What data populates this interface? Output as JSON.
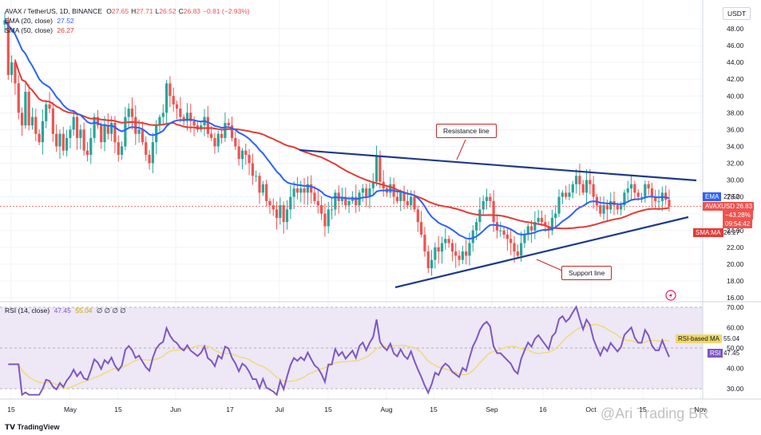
{
  "header": {
    "symbol_line": "AVAX / TetherUS, 1D, BINANCE",
    "ohlc": [
      {
        "k": "O",
        "v": "27.65"
      },
      {
        "k": "H",
        "v": "27.71"
      },
      {
        "k": "L",
        "v": "26.52"
      },
      {
        "k": "C",
        "v": "26.83"
      },
      {
        "k": "",
        "v": "−0.81 (−2.93%)"
      }
    ],
    "ema_label": "EMA (20, close)",
    "ema_value": "27.52",
    "sma_label": "SMA (50, close)",
    "sma_value": "26.27",
    "rsi_label": "RSI (14, close)",
    "rsi_value": "47.45",
    "rsi_ma_value": "55.04",
    "rsi_extra": "∅ ∅ ∅ ∅"
  },
  "currency": "USDT",
  "badges": {
    "ema": {
      "label": "EMA",
      "value": "27.52"
    },
    "price": {
      "label": "AVAXUSDT",
      "value": "26.83",
      "change": "−43.28%",
      "countdown": "09:54:42"
    },
    "sma": {
      "label": "SMA:MA",
      "value": "26.27"
    },
    "rsi_ma": {
      "label": "RSI-based MA",
      "value": "55.04"
    },
    "rsi": {
      "label": "RSI",
      "value": "47.45"
    }
  },
  "annotations": {
    "resistance": "Resistance line",
    "support": "Support line"
  },
  "footer": {
    "logo": "TradingView",
    "watermark": "@Ari Trading BR"
  },
  "colors": {
    "up": "#26a69a",
    "down": "#ef5350",
    "ema": "#2962ff",
    "sma": "#e53935",
    "trend": "#1e3a8a",
    "rsi": "#7e57c2",
    "rsi_ma": "#f0d86a",
    "rsi_band": "#ede7f6"
  },
  "chart_data": [
    {
      "type": "candlestick",
      "title": "AVAX / TetherUS, 1D, BINANCE",
      "x_ticks": [
        "15",
        "May",
        "15",
        "Jun",
        "17",
        "Jul",
        "15",
        "Aug",
        "15",
        "Sep",
        "16",
        "Oct",
        "15",
        "Nov"
      ],
      "y_ticks": [
        "48.00",
        "46.00",
        "44.00",
        "42.00",
        "40.00",
        "38.00",
        "36.00",
        "34.00",
        "32.00",
        "30.00",
        "28.00",
        "26.00",
        "24.00",
        "22.00",
        "20.00",
        "18.00",
        "16.00"
      ],
      "ylim": [
        15.0,
        50.0
      ],
      "close": [
        49.0,
        42.5,
        44.0,
        41.5,
        38.0,
        36.5,
        40.5,
        36.5,
        37.5,
        35.5,
        34.5,
        37.0,
        39.0,
        38.5,
        35.5,
        34.0,
        35.5,
        33.5,
        35.0,
        36.0,
        37.5,
        35.0,
        36.0,
        33.5,
        33.0,
        35.0,
        37.5,
        36.5,
        34.5,
        36.5,
        35.5,
        36.8,
        34.5,
        33.0,
        34.0,
        37.5,
        38.5,
        37.5,
        35.5,
        36.0,
        34.5,
        33.0,
        32.0,
        34.5,
        36.5,
        37.5,
        38.0,
        41.5,
        40.0,
        39.0,
        38.5,
        37.5,
        37.0,
        38.0,
        37.0,
        36.5,
        36.0,
        36.5,
        37.5,
        35.5,
        35.0,
        34.0,
        35.5,
        35.0,
        36.8,
        36.5,
        35.0,
        34.0,
        32.5,
        33.5,
        33.0,
        32.0,
        30.5,
        30.5,
        28.5,
        29.5,
        27.5,
        27.0,
        26.5,
        25.5,
        27.0,
        25.0,
        26.5,
        28.0,
        29.0,
        28.5,
        29.0,
        28.5,
        29.5,
        28.5,
        27.5,
        27.0,
        26.0,
        24.5,
        26.5,
        26.5,
        28.5,
        27.5,
        28.0,
        27.0,
        27.5,
        28.0,
        27.0,
        28.5,
        29.0,
        28.0,
        29.0,
        29.8,
        32.8,
        29.8,
        29.0,
        28.5,
        29.5,
        28.0,
        27.5,
        28.5,
        27.5,
        27.0,
        28.0,
        26.5,
        25.0,
        23.5,
        21.5,
        19.5,
        20.5,
        22.0,
        21.5,
        22.5,
        23.0,
        22.5,
        21.5,
        21.0,
        20.5,
        21.5,
        21.0,
        22.5,
        24.0,
        25.0,
        26.5,
        27.5,
        28.0,
        27.5,
        25.0,
        24.0,
        24.0,
        23.5,
        23.0,
        22.5,
        21.5,
        21.0,
        22.5,
        23.5,
        24.5,
        24.0,
        25.0,
        25.5,
        25.0,
        24.5,
        24.0,
        25.5,
        26.0,
        28.0,
        28.5,
        28.0,
        28.5,
        29.5,
        30.5,
        29.5,
        28.5,
        30.0,
        29.5,
        28.0,
        27.0,
        26.0,
        27.0,
        26.5,
        27.5,
        27.0,
        26.5,
        27.0,
        28.5,
        29.0,
        29.5,
        28.5,
        28.0,
        28.0,
        29.5,
        29.0,
        28.0,
        27.5,
        27.5,
        28.5,
        27.65,
        26.83
      ]
    },
    {
      "type": "line",
      "title": "RSI (14, close)",
      "y_ticks": [
        "70.00",
        "60.00",
        "50.00",
        "40.00",
        "30.00"
      ],
      "ylim": [
        25,
        75
      ],
      "bands": [
        30,
        70
      ],
      "last_rsi": 47.45,
      "last_rsi_ma": 55.04
    }
  ]
}
